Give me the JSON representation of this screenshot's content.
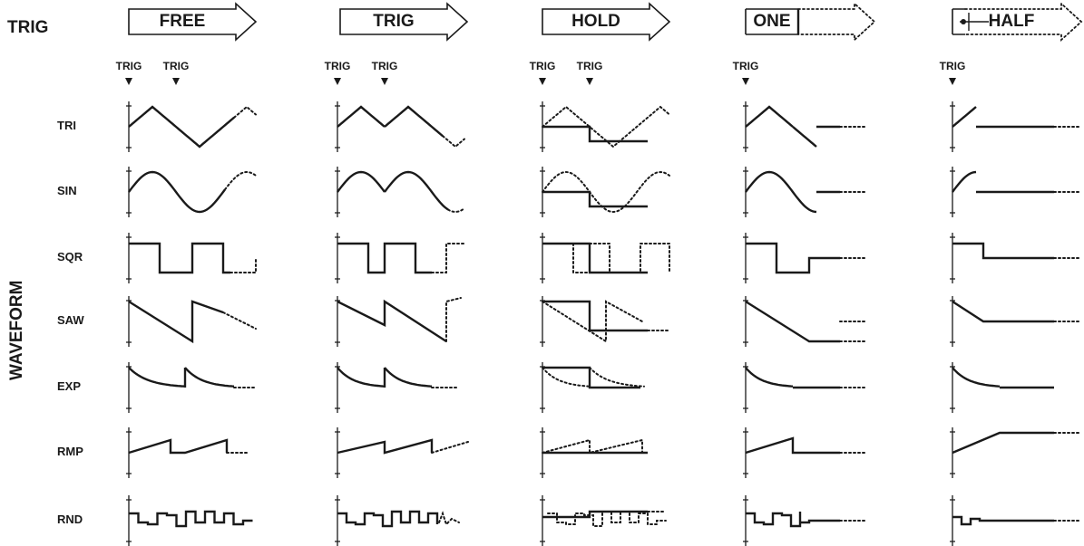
{
  "trig_label": "TRIG",
  "waveform_label": "WAVEFORM",
  "trigger_marker_text": "TRIG",
  "modes": [
    {
      "name": "FREE",
      "arrow_style": "solid",
      "trigger_count": 2
    },
    {
      "name": "TRIG",
      "arrow_style": "solid",
      "trigger_count": 2
    },
    {
      "name": "HOLD",
      "arrow_style": "solid",
      "trigger_count": 2
    },
    {
      "name": "ONE",
      "arrow_style": "dotted",
      "trigger_count": 1
    },
    {
      "name": "HALF",
      "arrow_style": "dotted-with-pin",
      "trigger_count": 1
    }
  ],
  "waveforms": [
    "TRI",
    "SIN",
    "SQR",
    "SAW",
    "EXP",
    "RMP",
    "RND"
  ],
  "colors": {
    "ink": "#1a1a1a",
    "background": "#ffffff"
  }
}
